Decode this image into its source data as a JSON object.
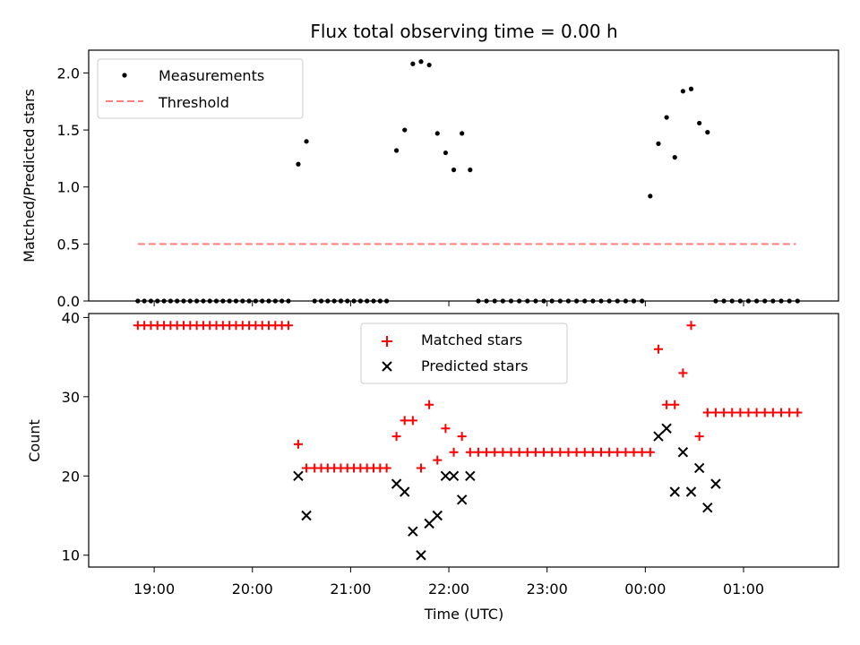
{
  "title": "Flux total observing time = 0.00 h",
  "xlabel": "Time (UTC)",
  "colors": {
    "measurement": "#000000",
    "threshold": "#ff7f7f",
    "matched": "#ff0000",
    "predicted": "#000000"
  },
  "chart_data": [
    {
      "type": "scatter",
      "title": "Flux total observing time = 0.00 h",
      "xlabel": "",
      "ylabel": "Matched/Predicted stars",
      "ylim": [
        0,
        2.2
      ],
      "yticks": [
        "0.0",
        "0.5",
        "1.0",
        "1.5",
        "2.0"
      ],
      "xticks": [
        "19:00",
        "20:00",
        "21:00",
        "22:00",
        "23:00",
        "00:00",
        "01:00"
      ],
      "legend": {
        "placement": "top-left",
        "entries": [
          "Measurements",
          "Threshold"
        ]
      },
      "series": [
        {
          "name": "Measurements",
          "x": [
            "18:50",
            "18:54",
            "18:58",
            "19:02",
            "19:06",
            "19:10",
            "19:14",
            "19:18",
            "19:22",
            "19:26",
            "19:30",
            "19:34",
            "19:38",
            "19:42",
            "19:46",
            "19:50",
            "19:54",
            "19:58",
            "20:02",
            "20:06",
            "20:10",
            "20:14",
            "20:18",
            "20:22",
            "20:28",
            "20:33",
            "20:38",
            "20:42",
            "20:46",
            "20:50",
            "20:54",
            "20:58",
            "21:02",
            "21:06",
            "21:10",
            "21:14",
            "21:18",
            "21:22",
            "21:28",
            "21:33",
            "21:38",
            "21:43",
            "21:48",
            "21:53",
            "21:58",
            "22:03",
            "22:08",
            "22:13",
            "22:18",
            "22:23",
            "22:28",
            "22:33",
            "22:38",
            "22:43",
            "22:48",
            "22:53",
            "22:58",
            "23:03",
            "23:08",
            "23:13",
            "23:18",
            "23:23",
            "23:28",
            "23:33",
            "23:38",
            "23:43",
            "23:48",
            "23:53",
            "23:58",
            "00:03",
            "00:08",
            "00:13",
            "00:18",
            "00:23",
            "00:28",
            "00:33",
            "00:38",
            "00:43",
            "00:48",
            "00:53",
            "00:58",
            "01:03",
            "01:08",
            "01:13",
            "01:18",
            "01:23",
            "01:28",
            "01:33"
          ],
          "values": [
            0,
            0,
            0,
            0,
            0,
            0,
            0,
            0,
            0,
            0,
            0,
            0,
            0,
            0,
            0,
            0,
            0,
            0,
            0,
            0,
            0,
            0,
            0,
            0,
            1.2,
            1.4,
            0,
            0,
            0,
            0,
            0,
            0,
            0,
            0,
            0,
            0,
            0,
            0,
            1.32,
            1.5,
            2.08,
            2.1,
            2.07,
            1.47,
            1.3,
            1.15,
            1.47,
            1.15,
            0,
            0,
            0,
            0,
            0,
            0,
            0,
            0,
            0,
            0,
            0,
            0,
            0,
            0,
            0,
            0,
            0,
            0,
            0,
            0,
            0,
            0.92,
            1.38,
            1.61,
            1.26,
            1.84,
            1.86,
            1.56,
            1.48,
            0,
            0,
            0,
            0,
            0,
            0,
            0,
            0,
            0,
            0,
            0
          ]
        },
        {
          "name": "Threshold",
          "x": [
            "18:50",
            "01:32"
          ],
          "values": [
            0.5,
            0.5
          ]
        }
      ]
    },
    {
      "type": "scatter",
      "title": "",
      "xlabel": "Time (UTC)",
      "ylabel": "Count",
      "ylim": [
        8.5,
        40.5
      ],
      "yticks": [
        "10",
        "20",
        "30",
        "40"
      ],
      "xticks": [
        "19:00",
        "20:00",
        "21:00",
        "22:00",
        "23:00",
        "00:00",
        "01:00"
      ],
      "legend": {
        "placement": "top-center",
        "entries": [
          "Matched stars",
          "Predicted stars"
        ]
      },
      "series": [
        {
          "name": "Matched stars",
          "x": [
            "18:50",
            "18:54",
            "18:58",
            "19:02",
            "19:06",
            "19:10",
            "19:14",
            "19:18",
            "19:22",
            "19:26",
            "19:30",
            "19:34",
            "19:38",
            "19:42",
            "19:46",
            "19:50",
            "19:54",
            "19:58",
            "20:02",
            "20:06",
            "20:10",
            "20:14",
            "20:18",
            "20:22",
            "20:28",
            "20:33",
            "20:38",
            "20:42",
            "20:46",
            "20:50",
            "20:54",
            "20:58",
            "21:02",
            "21:06",
            "21:10",
            "21:14",
            "21:18",
            "21:22",
            "21:28",
            "21:33",
            "21:38",
            "21:43",
            "21:48",
            "21:53",
            "21:58",
            "22:03",
            "22:08",
            "22:13",
            "22:18",
            "22:23",
            "22:28",
            "22:33",
            "22:38",
            "22:43",
            "22:48",
            "22:53",
            "22:58",
            "23:03",
            "23:08",
            "23:13",
            "23:18",
            "23:23",
            "23:28",
            "23:33",
            "23:38",
            "23:43",
            "23:48",
            "23:53",
            "23:58",
            "00:03",
            "00:08",
            "00:13",
            "00:18",
            "00:23",
            "00:28",
            "00:33",
            "00:38",
            "00:43",
            "00:48",
            "00:53",
            "00:58",
            "01:03",
            "01:08",
            "01:13",
            "01:18",
            "01:23",
            "01:28",
            "01:33"
          ],
          "values": [
            39,
            39,
            39,
            39,
            39,
            39,
            39,
            39,
            39,
            39,
            39,
            39,
            39,
            39,
            39,
            39,
            39,
            39,
            39,
            39,
            39,
            39,
            39,
            39,
            24,
            21,
            21,
            21,
            21,
            21,
            21,
            21,
            21,
            21,
            21,
            21,
            21,
            21,
            25,
            27,
            27,
            21,
            29,
            22,
            26,
            23,
            25,
            23,
            23,
            23,
            23,
            23,
            23,
            23,
            23,
            23,
            23,
            23,
            23,
            23,
            23,
            23,
            23,
            23,
            23,
            23,
            23,
            23,
            23,
            23,
            36,
            29,
            29,
            33,
            39,
            25,
            28,
            28,
            28,
            28,
            28,
            28,
            28,
            28,
            28,
            28,
            28,
            28
          ]
        },
        {
          "name": "Predicted stars",
          "x": [
            "20:28",
            "20:33",
            "21:28",
            "21:33",
            "21:38",
            "21:43",
            "21:48",
            "21:53",
            "21:58",
            "22:03",
            "22:08",
            "22:13",
            "00:08",
            "00:13",
            "00:18",
            "00:23",
            "00:28",
            "00:33",
            "00:38",
            "00:43"
          ],
          "values": [
            20,
            15,
            19,
            18,
            13,
            10,
            14,
            15,
            20,
            20,
            17,
            20,
            25,
            26,
            18,
            23,
            18,
            21,
            16,
            19
          ]
        }
      ]
    }
  ]
}
